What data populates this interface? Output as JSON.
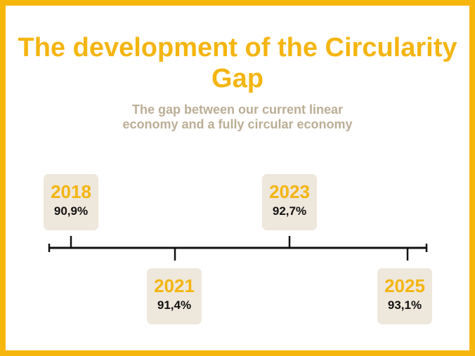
{
  "title": "The development of the Circularity Gap",
  "subtitle": "The gap between our current linear economy and a fully circular economy",
  "colors": {
    "accent": "#F4B510",
    "border": "#F7B60C",
    "card": "#EEE7DB",
    "subtitle": "#BBAE95",
    "line": "#111111"
  },
  "milestones": [
    {
      "year": "2018",
      "value": "90,9%"
    },
    {
      "year": "2021",
      "value": "91,4%"
    },
    {
      "year": "2023",
      "value": "92,7%"
    },
    {
      "year": "2025",
      "value": "93,1%"
    }
  ]
}
